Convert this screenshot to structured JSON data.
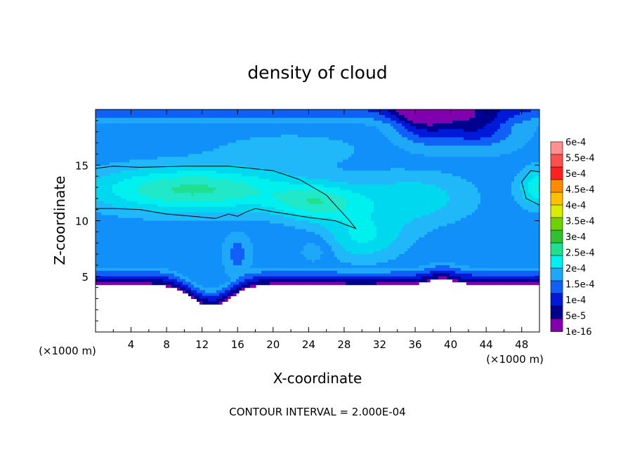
{
  "chart_data": {
    "type": "heatmap",
    "title": "density of cloud",
    "xlabel": "X-coordinate",
    "ylabel": "Z-coordinate",
    "x_unit_left": "(×1000 m)",
    "x_unit_right": "(×1000 m)",
    "footer": "CONTOUR INTERVAL = 2.000E-04",
    "xlim": [
      0,
      50
    ],
    "ylim": [
      0,
      20
    ],
    "x_ticks": [
      4,
      8,
      12,
      16,
      20,
      24,
      28,
      32,
      36,
      40,
      44,
      48
    ],
    "y_ticks": [
      5,
      10,
      15
    ],
    "colorbar": {
      "labels": [
        "6e-4",
        "5.5e-4",
        "5e-4",
        "4.5e-4",
        "4e-4",
        "3.5e-4",
        "3e-4",
        "2.5e-4",
        "2e-4",
        "1.5e-4",
        "1e-4",
        "5e-5",
        "1e-16"
      ],
      "colors": [
        "#ff9090",
        "#ff5050",
        "#ff2020",
        "#ff8c00",
        "#ffc000",
        "#d8ec00",
        "#70d000",
        "#30c030",
        "#20e090",
        "#00f0f0",
        "#20a8f8",
        "#1060f8",
        "#0018d8",
        "#000090",
        "#8000b0"
      ]
    },
    "contour_level": "2.000E-04",
    "contours": [
      {
        "name": "2e-4 band",
        "points": [
          [
            0,
            14.7
          ],
          [
            2,
            14.9
          ],
          [
            5,
            14.8
          ],
          [
            10,
            14.9
          ],
          [
            15,
            14.9
          ],
          [
            20,
            14.5
          ],
          [
            23,
            13.7
          ],
          [
            26,
            12.3
          ],
          [
            28.5,
            10.1
          ],
          [
            29.3,
            9.3
          ],
          [
            27,
            10
          ],
          [
            24,
            10.3
          ],
          [
            20,
            10.8
          ],
          [
            18,
            11.1
          ],
          [
            17,
            10.8
          ],
          [
            16,
            10.4
          ],
          [
            15,
            10.6
          ],
          [
            13.5,
            10.2
          ],
          [
            11,
            10.4
          ],
          [
            8,
            10.6
          ],
          [
            5,
            11
          ],
          [
            2,
            11.1
          ],
          [
            0,
            11.1
          ]
        ]
      },
      {
        "name": "2e-4 right edge",
        "points": [
          [
            50,
            14.4
          ],
          [
            49,
            14.5
          ],
          [
            48,
            13.5
          ],
          [
            48.5,
            12
          ],
          [
            50,
            11.4
          ]
        ]
      }
    ],
    "field": {
      "x": [
        0,
        50
      ],
      "y": [
        0,
        20
      ],
      "description_regions": [
        {
          "kind": "base",
          "value": 0.00012
        },
        {
          "kind": "core",
          "x": 12,
          "z": 12.8,
          "value": 0.00023
        },
        {
          "kind": "core",
          "x": 25,
          "z": 11.5,
          "value": 0.000215
        },
        {
          "kind": "core",
          "x": 30,
          "z": 8.5,
          "value": 0.000175
        },
        {
          "kind": "dry",
          "x": 37,
          "z": 19.5,
          "value": 0
        },
        {
          "kind": "dry",
          "x": 43,
          "z": 18.5,
          "value": 2e-05
        },
        {
          "kind": "core",
          "x": 50,
          "z": 13,
          "value": 0.00021
        }
      ]
    }
  }
}
